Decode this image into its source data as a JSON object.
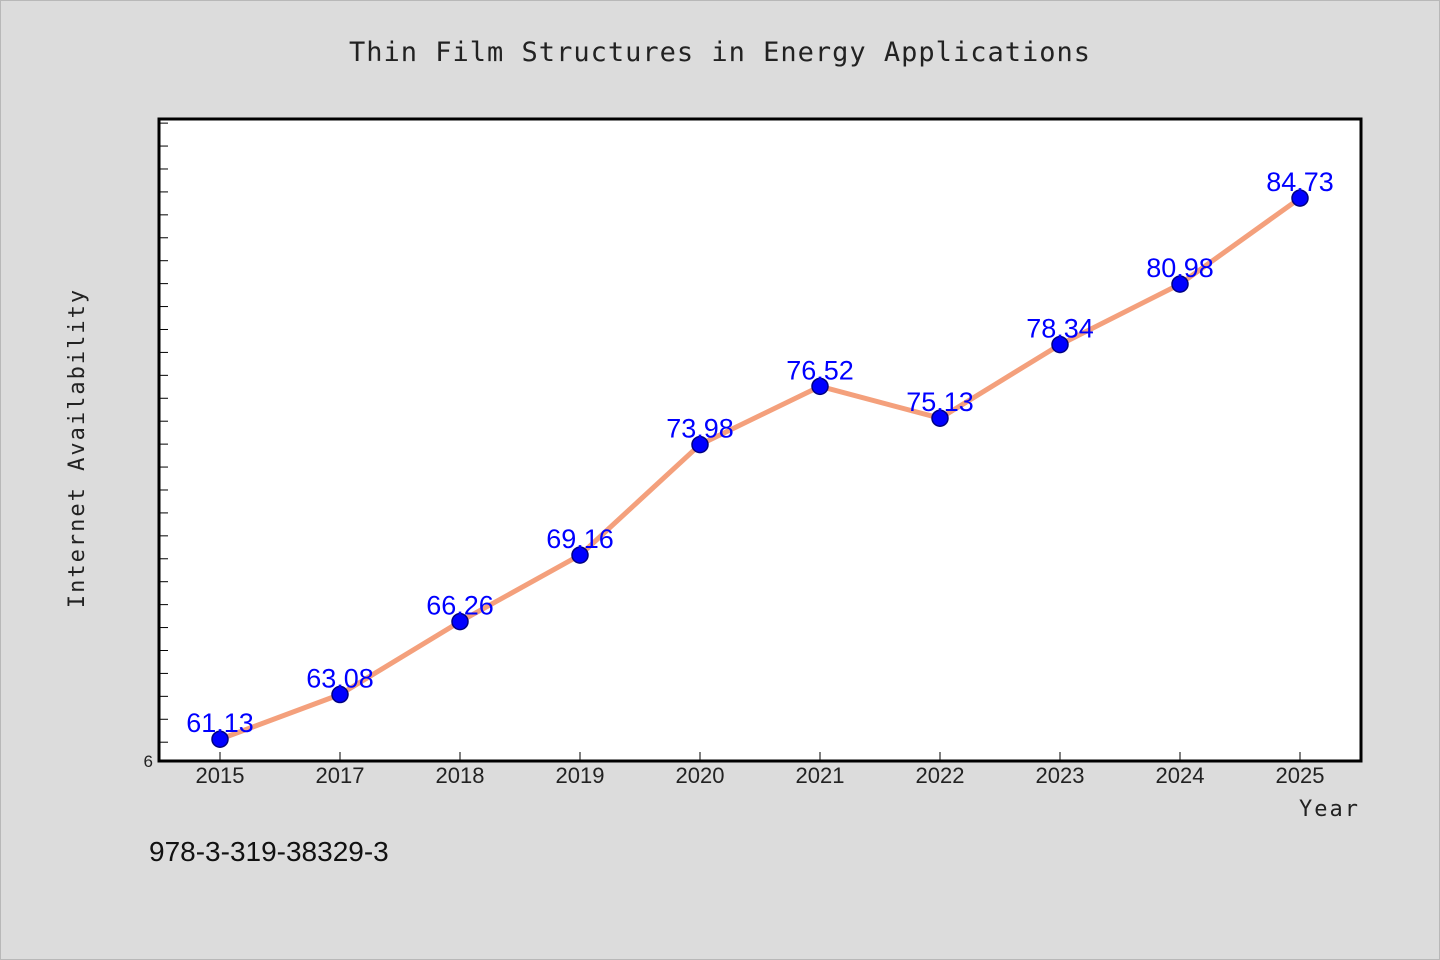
{
  "chart_data": {
    "type": "line",
    "title": "Thin Film Structures in Energy Applications",
    "xlabel": "Year",
    "ylabel": "Internet Availability",
    "categories": [
      "2015",
      "2017",
      "2018",
      "2019",
      "2020",
      "2021",
      "2022",
      "2023",
      "2024",
      "2025"
    ],
    "series": [
      {
        "values": [
          61.13,
          63.08,
          66.26,
          69.16,
          73.98,
          76.52,
          75.13,
          78.34,
          80.98,
          84.73
        ]
      }
    ],
    "data_labels": [
      "61.13",
      "63.08",
      "66.26",
      "69.16",
      "73.98",
      "76.52",
      "75.13",
      "78.34",
      "80.98",
      "84.73"
    ],
    "y_tick_labels": [
      "6"
    ],
    "ylim": [
      60.18,
      88.18
    ],
    "grid": false,
    "legend": "none",
    "colors": {
      "line": "#f4a07c",
      "marker_fill": "#0000ff",
      "marker_edge": "#000080",
      "data_label": "#0000ff",
      "plot_background": "#ffffff",
      "figure_background": "#dcdcdc"
    }
  },
  "footer": {
    "isbn": "978-3-319-38329-3"
  }
}
